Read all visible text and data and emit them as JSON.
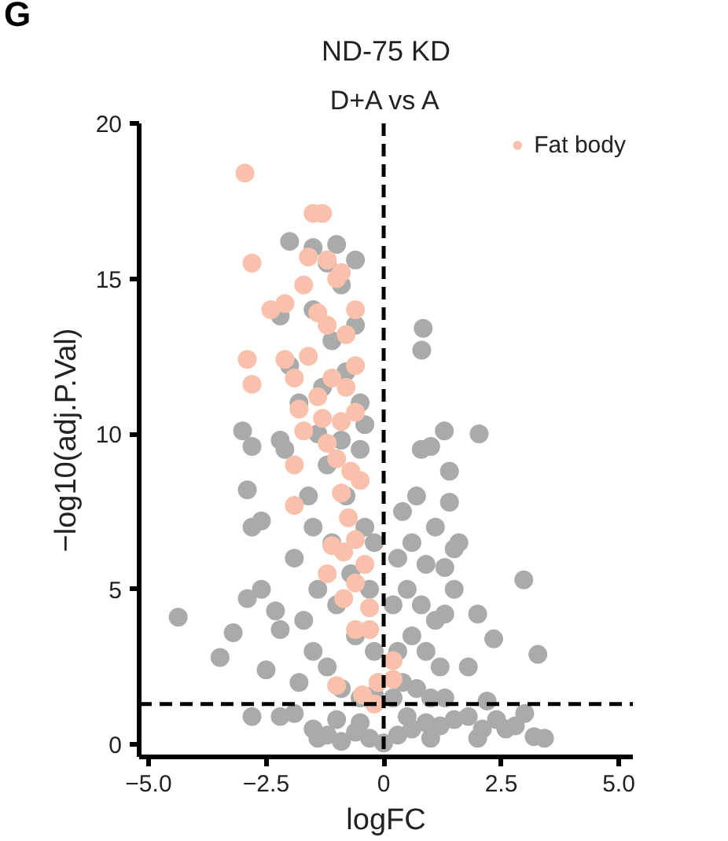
{
  "chart_data": {
    "type": "scatter",
    "title": "ND-75 KD",
    "subtitle": "D+A vs A",
    "xlabel": "logFC",
    "ylabel": "−log10(adj.P.Val)",
    "annotations": [
      "G"
    ],
    "xlim": [
      -5.2,
      5.3
    ],
    "ylim": [
      -0.4,
      20
    ],
    "xticks": [
      {
        "value": -5,
        "label": "−5.0"
      },
      {
        "value": -2.5,
        "label": "−2.5"
      },
      {
        "value": 0,
        "label": "0"
      },
      {
        "value": 2.5,
        "label": "2.5"
      },
      {
        "value": 5,
        "label": "5.0"
      }
    ],
    "yticks": [
      0,
      5,
      10,
      15,
      20
    ],
    "grid": false,
    "legend": "top right",
    "marker": "circle",
    "ref_lines": [
      {
        "axis": "x",
        "value": 0,
        "line_style": "dashed",
        "color": "#000000"
      },
      {
        "axis": "y",
        "value": 1.3,
        "line_style": "dashed",
        "color": "#000000"
      }
    ],
    "series": [
      {
        "color": "#a9abab",
        "x": [
          -2.8,
          -2.2,
          -1.9,
          -1.5,
          -1.2,
          -0.9,
          -0.6,
          -0.3,
          0,
          0.3,
          0.6,
          0.9,
          1.2,
          1.5,
          1.8,
          2.1,
          2.4,
          2.6,
          2.8,
          3.0,
          -1.0,
          0.5,
          -0.5,
          1.0,
          -1.4,
          2.0,
          3.2,
          3.42,
          -1.8,
          -1.5,
          -1.2,
          -0.9,
          -0.5,
          -0.2,
          -1.7,
          -1.4,
          -1.0,
          -0.6,
          -0.2,
          -1.9,
          -1.5,
          -1.1,
          -0.7,
          -0.3,
          -1.6,
          -1.2,
          -0.8,
          -0.4,
          -0.2,
          -2.1,
          -1.4,
          -0.9,
          -0.5,
          -2.2,
          -2.5,
          -2.3,
          -2.6,
          -2.8,
          -2.9,
          -2.6,
          -2.9,
          -3.2,
          -3.48,
          -4.37,
          -3.0,
          -2.8,
          -2.2,
          -1.8,
          -1.3,
          -0.8,
          -2.0,
          -1.1,
          -0.6,
          -1.5,
          -2.2,
          -0.9,
          -1.2,
          -0.6,
          -1.5,
          -2.0,
          -1.0,
          -0.5,
          -0.4,
          0.2,
          0.4,
          0.7,
          1.0,
          1.3,
          0.3,
          0.6,
          0.9,
          1.2,
          0.2,
          0.5,
          0.8,
          1.1,
          0.3,
          0.6,
          0.9,
          1.3,
          0.4,
          0.7,
          1.1,
          1.5,
          1.4,
          0.8,
          1.0,
          1.29,
          1.4,
          0.84,
          0.81,
          2.03,
          1.5,
          1.8,
          2.2,
          2.98,
          3.28,
          2.0,
          2.34,
          1.6,
          1.3
        ],
        "values": [
          0.9,
          0.9,
          1.0,
          0.5,
          0.3,
          0.1,
          0.4,
          0.2,
          0.05,
          0.3,
          0.5,
          0.7,
          0.6,
          0.8,
          0.9,
          0.5,
          0.8,
          0.5,
          0.6,
          1.0,
          0.8,
          0.9,
          0.7,
          0.2,
          0.2,
          0.2,
          0.25,
          0.2,
          2,
          3,
          2.5,
          1.8,
          1.5,
          1.6,
          4,
          5,
          4.5,
          3.5,
          3,
          6,
          7,
          6.5,
          5.5,
          5,
          8,
          9,
          8,
          7,
          6.5,
          9.5,
          10,
          9.8,
          9.5,
          3.7,
          2.4,
          4.3,
          5,
          7,
          8.2,
          7.2,
          4.7,
          3.6,
          2.8,
          4.1,
          10.1,
          9.6,
          9.8,
          11,
          11.5,
          12,
          12.2,
          13,
          13.5,
          14,
          13.8,
          14.8,
          15.5,
          15.6,
          16,
          16.2,
          16.1,
          11,
          10.3,
          1.5,
          2,
          1.8,
          1.5,
          1.5,
          3,
          3.5,
          3,
          2.5,
          4.5,
          5,
          4.5,
          4,
          6,
          6.5,
          5.8,
          5.7,
          7.5,
          8,
          7,
          6.3,
          7.8,
          9.5,
          9.6,
          10.1,
          8.8,
          13.4,
          12.7,
          10.0,
          5,
          2.5,
          1.4,
          5.3,
          2.9,
          4.2,
          3.4,
          6.5,
          4.2
        ]
      },
      {
        "name": "Fat body",
        "color": "#f9c0ab",
        "x": [
          -2.95,
          -1.5,
          -1.3,
          -2.8,
          -1.6,
          -1.2,
          -0.9,
          -1.7,
          -1.0,
          -2.4,
          -2.1,
          -1.4,
          -1.2,
          -0.8,
          -0.6,
          -2.9,
          -2.8,
          -2.1,
          -1.9,
          -1.6,
          -1.4,
          -1.1,
          -0.8,
          -0.6,
          -1.8,
          -1.3,
          -0.9,
          -0.6,
          -1.7,
          -1.2,
          -1.0,
          -0.7,
          -0.5,
          -1.9,
          -1.9,
          -0.9,
          -0.75,
          -1.1,
          -0.85,
          -0.6,
          -1.2,
          -0.4,
          -0.6,
          -0.85,
          -0.3,
          -0.6,
          -0.3,
          0.2,
          0.2,
          -1.0,
          -0.12,
          -0.45,
          -0.2
        ],
        "values": [
          18.4,
          17.1,
          17.1,
          15.5,
          15.7,
          15.6,
          15.2,
          14.8,
          15.0,
          14.0,
          14.2,
          13.9,
          13.5,
          13.2,
          14.0,
          12.4,
          11.6,
          12.4,
          11.8,
          12.5,
          11.2,
          11.8,
          11.5,
          12.2,
          10.8,
          10.5,
          10.4,
          10.7,
          10.1,
          9.7,
          9.2,
          8.8,
          8.5,
          9.0,
          7.7,
          8.1,
          7.3,
          6.4,
          6.2,
          6.6,
          5.5,
          5.8,
          5.2,
          4.7,
          4.4,
          3.7,
          3.7,
          2.7,
          2.1,
          1.9,
          2.0,
          1.6,
          1.3
        ]
      }
    ]
  }
}
